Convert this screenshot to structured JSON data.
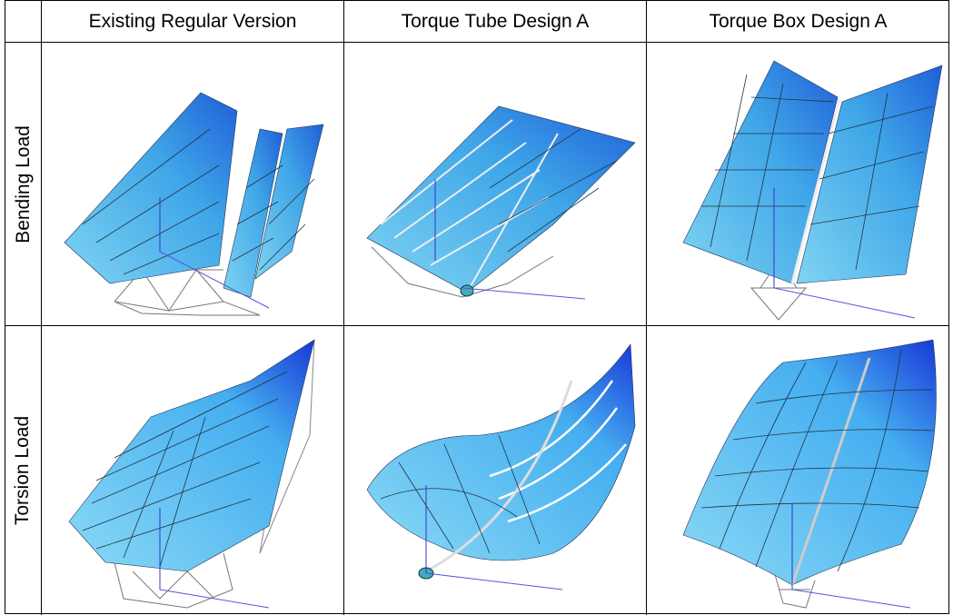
{
  "table": {
    "columns": [
      "Existing Regular Version",
      "Torque Tube Design A",
      "Torque Box Design A"
    ],
    "rows": [
      {
        "label": "Bending Load"
      },
      {
        "label": "Torsion Load"
      }
    ]
  }
}
